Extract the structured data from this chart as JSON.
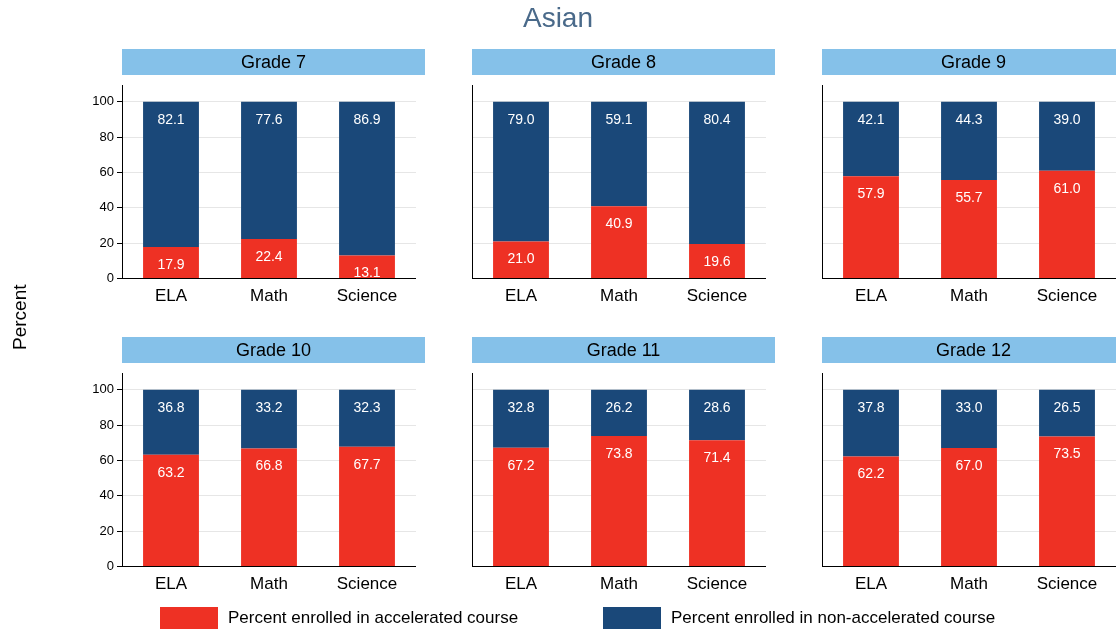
{
  "chart_data": [
    {
      "type": "other",
      "title": "Asian"
    },
    {
      "type": "bar",
      "subtitle": "Grade 7",
      "ylabel": "Percent",
      "legend": "bottom",
      "stacked": true,
      "grid": "y",
      "categories": [
        "ELA",
        "Math",
        "Science"
      ],
      "ylim": [
        0,
        109
      ],
      "yticks": [
        0,
        20,
        40,
        60,
        80,
        100
      ],
      "series": [
        {
          "name": "Percent enrolled in accelerated course",
          "color": "#ee3124",
          "values": [
            17.9,
            22.4,
            13.1
          ],
          "value_labels": [
            "17.9",
            "22.4",
            "13.1"
          ]
        },
        {
          "name": "Percent enrolled in non-accelerated course",
          "color": "#1a4879",
          "values": [
            82.1,
            77.6,
            86.9
          ],
          "value_labels": [
            "82.1",
            "77.6",
            "86.9"
          ]
        }
      ]
    },
    {
      "type": "bar",
      "subtitle": "Grade 8",
      "stacked": true,
      "grid": "y",
      "tick_labels": "x",
      "categories": [
        "ELA",
        "Math",
        "Science"
      ],
      "ylim": [
        0,
        109
      ],
      "yticks": [
        0,
        20,
        40,
        60,
        80,
        100
      ],
      "series": [
        {
          "color": "#ee3124",
          "values": [
            21.0,
            40.9,
            19.6
          ],
          "value_labels": [
            "21.0",
            "40.9",
            "19.6"
          ]
        },
        {
          "color": "#1a4879",
          "values": [
            79.0,
            59.1,
            80.4
          ],
          "value_labels": [
            "79.0",
            "59.1",
            "80.4"
          ]
        }
      ]
    },
    {
      "type": "bar",
      "subtitle": "Grade 9",
      "stacked": true,
      "grid": "y",
      "tick_labels": "x",
      "categories": [
        "ELA",
        "Math",
        "Science"
      ],
      "ylim": [
        0,
        109
      ],
      "yticks": [
        0,
        20,
        40,
        60,
        80,
        100
      ],
      "series": [
        {
          "color": "#ee3124",
          "values": [
            57.9,
            55.7,
            61.0
          ],
          "value_labels": [
            "57.9",
            "55.7",
            "61.0"
          ]
        },
        {
          "color": "#1a4879",
          "values": [
            42.1,
            44.3,
            39.0
          ],
          "value_labels": [
            "42.1",
            "44.3",
            "39.0"
          ]
        }
      ]
    },
    {
      "type": "bar",
      "subtitle": "Grade 10",
      "stacked": true,
      "grid": "y",
      "categories": [
        "ELA",
        "Math",
        "Science"
      ],
      "ylim": [
        0,
        109
      ],
      "yticks": [
        0,
        20,
        40,
        60,
        80,
        100
      ],
      "series": [
        {
          "color": "#ee3124",
          "values": [
            63.2,
            66.8,
            67.7
          ],
          "value_labels": [
            "63.2",
            "66.8",
            "67.7"
          ]
        },
        {
          "color": "#1a4879",
          "values": [
            36.8,
            33.2,
            32.3
          ],
          "value_labels": [
            "36.8",
            "33.2",
            "32.3"
          ]
        }
      ]
    },
    {
      "type": "bar",
      "subtitle": "Grade 11",
      "stacked": true,
      "grid": "y",
      "tick_labels": "x",
      "categories": [
        "ELA",
        "Math",
        "Science"
      ],
      "ylim": [
        0,
        109
      ],
      "yticks": [
        0,
        20,
        40,
        60,
        80,
        100
      ],
      "series": [
        {
          "color": "#ee3124",
          "values": [
            67.2,
            73.8,
            71.4
          ],
          "value_labels": [
            "67.2",
            "73.8",
            "71.4"
          ]
        },
        {
          "color": "#1a4879",
          "values": [
            32.8,
            26.2,
            28.6
          ],
          "value_labels": [
            "32.8",
            "26.2",
            "28.6"
          ]
        }
      ]
    },
    {
      "type": "bar",
      "subtitle": "Grade 12",
      "stacked": true,
      "grid": "y",
      "tick_labels": "x",
      "categories": [
        "ELA",
        "Math",
        "Science"
      ],
      "ylim": [
        0,
        109
      ],
      "yticks": [
        0,
        20,
        40,
        60,
        80,
        100
      ],
      "series": [
        {
          "color": "#ee3124",
          "values": [
            62.2,
            67.0,
            73.5
          ],
          "value_labels": [
            "62.2",
            "67.0",
            "73.5"
          ]
        },
        {
          "color": "#1a4879",
          "values": [
            37.8,
            33.0,
            26.5
          ],
          "value_labels": [
            "37.8",
            "33.0",
            "26.5"
          ]
        }
      ]
    }
  ]
}
